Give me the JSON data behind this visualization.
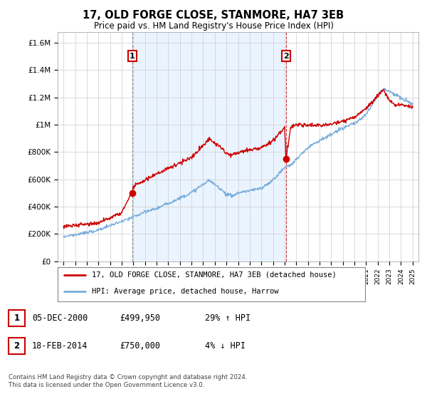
{
  "title": "17, OLD FORGE CLOSE, STANMORE, HA7 3EB",
  "subtitle": "Price paid vs. HM Land Registry's House Price Index (HPI)",
  "ylabel_ticks": [
    "£0",
    "£200K",
    "£400K",
    "£600K",
    "£800K",
    "£1M",
    "£1.2M",
    "£1.4M",
    "£1.6M"
  ],
  "ytick_values": [
    0,
    200000,
    400000,
    600000,
    800000,
    1000000,
    1200000,
    1400000,
    1600000
  ],
  "ylim": [
    0,
    1680000
  ],
  "xlim_start": 1994.5,
  "xlim_end": 2025.5,
  "sale1_year": 2000.92,
  "sale1_price": 499950,
  "sale1_label": "1",
  "sale2_year": 2014.12,
  "sale2_price": 750000,
  "sale2_label": "2",
  "legend_line1": "17, OLD FORGE CLOSE, STANMORE, HA7 3EB (detached house)",
  "legend_line2": "HPI: Average price, detached house, Harrow",
  "table_row1": [
    "1",
    "05-DEC-2000",
    "£499,950",
    "29% ↑ HPI"
  ],
  "table_row2": [
    "2",
    "18-FEB-2014",
    "£750,000",
    "4% ↓ HPI"
  ],
  "footer": "Contains HM Land Registry data © Crown copyright and database right 2024.\nThis data is licensed under the Open Government Licence v3.0.",
  "color_red": "#cc0000",
  "color_blue": "#7aaddc",
  "color_grid": "#cccccc",
  "color_shade": "#ddeeff",
  "background": "#ffffff",
  "hpi_anchors_x": [
    1995,
    1996,
    1997,
    1998,
    1999,
    2000,
    2001,
    2002,
    2003,
    2004,
    2005,
    2006,
    2007,
    2007.5,
    2008,
    2008.5,
    2009,
    2009.5,
    2010,
    2010.5,
    2011,
    2012,
    2013,
    2014,
    2014.5,
    2015,
    2016,
    2016.5,
    2017,
    2018,
    2019,
    2020,
    2021,
    2022,
    2022.5,
    2023,
    2023.5,
    2024,
    2025
  ],
  "hpi_anchors_y": [
    175000,
    190000,
    205000,
    225000,
    255000,
    285000,
    320000,
    355000,
    385000,
    420000,
    460000,
    500000,
    560000,
    590000,
    560000,
    530000,
    490000,
    480000,
    500000,
    510000,
    520000,
    535000,
    600000,
    690000,
    710000,
    750000,
    840000,
    870000,
    890000,
    930000,
    980000,
    1010000,
    1080000,
    1220000,
    1270000,
    1250000,
    1230000,
    1200000,
    1160000
  ],
  "prop_anchors_x": [
    1995,
    1996,
    1997,
    1998,
    1999,
    2000,
    2000.92,
    2001,
    2002,
    2003,
    2004,
    2005,
    2006,
    2007,
    2007.5,
    2008,
    2008.5,
    2009,
    2009.5,
    2010,
    2011,
    2012,
    2013,
    2014,
    2014.12,
    2014.5,
    2015,
    2016,
    2017,
    2018,
    2019,
    2020,
    2021,
    2022,
    2022.5,
    2023,
    2023.5,
    2024,
    2025
  ],
  "prop_anchors_y": [
    245000,
    250000,
    260000,
    275000,
    305000,
    350000,
    499950,
    545000,
    590000,
    640000,
    680000,
    720000,
    760000,
    850000,
    900000,
    870000,
    840000,
    790000,
    780000,
    800000,
    820000,
    840000,
    890000,
    990000,
    750000,
    980000,
    1010000,
    1000000,
    1000000,
    1010000,
    1030000,
    1060000,
    1120000,
    1220000,
    1260000,
    1180000,
    1140000,
    1150000,
    1130000
  ]
}
